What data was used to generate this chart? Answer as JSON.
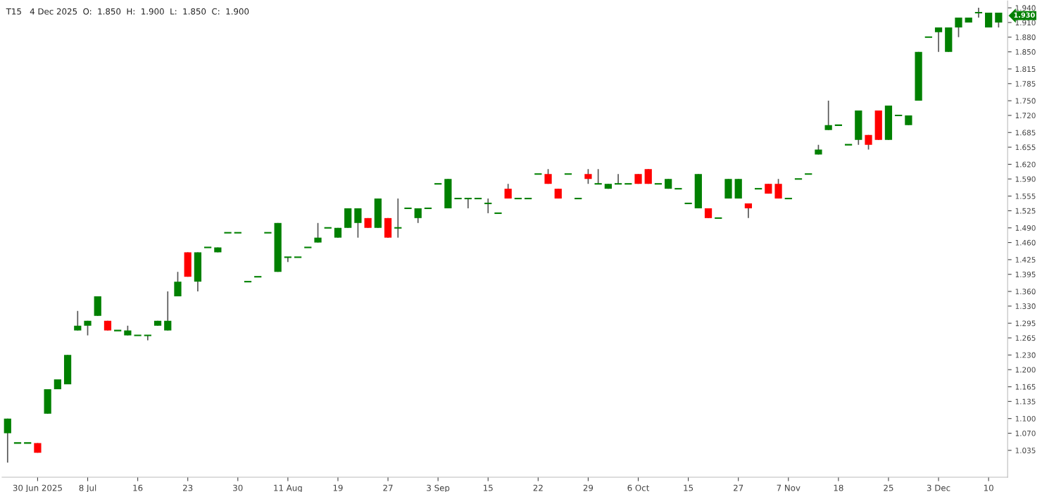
{
  "chart_data": {
    "type": "candlestick",
    "title": "T15   4 Dec 2025  O:  1.850  H:  1.900  L:  1.850  C:  1.900",
    "categories": [
      null,
      null,
      null,
      "30 Jun 2025",
      null,
      null,
      null,
      null,
      "8 Jul",
      null,
      null,
      null,
      null,
      "16",
      null,
      null,
      null,
      null,
      "23",
      null,
      null,
      null,
      null,
      "30",
      null,
      null,
      null,
      null,
      "11 Aug",
      null,
      null,
      null,
      null,
      "19",
      null,
      null,
      null,
      null,
      "27",
      null,
      null,
      null,
      null,
      "3 Sep",
      null,
      null,
      null,
      null,
      "15",
      null,
      null,
      null,
      null,
      "22",
      null,
      null,
      null,
      null,
      "29",
      null,
      null,
      null,
      null,
      "6 Oct",
      null,
      null,
      null,
      null,
      "15",
      null,
      null,
      null,
      null,
      "27",
      null,
      null,
      null,
      null,
      "7 Nov",
      null,
      null,
      null,
      null,
      "18",
      null,
      null,
      null,
      null,
      "25",
      null,
      null,
      null,
      null,
      "3 Dec",
      null,
      null,
      null,
      null,
      "10",
      null
    ],
    "ohlc": [
      [
        1.07,
        1.1,
        1.01,
        1.1
      ],
      [
        1.05,
        1.05,
        1.05,
        1.05
      ],
      [
        1.05,
        1.05,
        1.05,
        1.05
      ],
      [
        1.05,
        1.05,
        1.03,
        1.03
      ],
      [
        1.11,
        1.16,
        1.11,
        1.16
      ],
      [
        1.16,
        1.18,
        1.16,
        1.18
      ],
      [
        1.17,
        1.23,
        1.17,
        1.23
      ],
      [
        1.28,
        1.32,
        1.28,
        1.29
      ],
      [
        1.29,
        1.3,
        1.27,
        1.3
      ],
      [
        1.31,
        1.35,
        1.31,
        1.35
      ],
      [
        1.3,
        1.3,
        1.28,
        1.28
      ],
      [
        1.28,
        1.28,
        1.28,
        1.28
      ],
      [
        1.27,
        1.29,
        1.27,
        1.28
      ],
      [
        1.27,
        1.27,
        1.27,
        1.27
      ],
      [
        1.27,
        1.27,
        1.26,
        1.27
      ],
      [
        1.29,
        1.3,
        1.29,
        1.3
      ],
      [
        1.28,
        1.36,
        1.28,
        1.3
      ],
      [
        1.35,
        1.4,
        1.35,
        1.38
      ],
      [
        1.44,
        1.44,
        1.39,
        1.39
      ],
      [
        1.38,
        1.44,
        1.36,
        1.44
      ],
      [
        1.45,
        1.45,
        1.45,
        1.45
      ],
      [
        1.44,
        1.45,
        1.44,
        1.45
      ],
      [
        1.48,
        1.48,
        1.48,
        1.48
      ],
      [
        1.48,
        1.48,
        1.48,
        1.48
      ],
      [
        1.38,
        1.38,
        1.38,
        1.38
      ],
      [
        1.39,
        1.39,
        1.39,
        1.39
      ],
      [
        1.48,
        1.48,
        1.48,
        1.48
      ],
      [
        1.4,
        1.5,
        1.4,
        1.5
      ],
      [
        1.43,
        1.43,
        1.42,
        1.43
      ],
      [
        1.43,
        1.43,
        1.43,
        1.43
      ],
      [
        1.45,
        1.45,
        1.45,
        1.45
      ],
      [
        1.46,
        1.5,
        1.46,
        1.47
      ],
      [
        1.49,
        1.49,
        1.49,
        1.49
      ],
      [
        1.47,
        1.49,
        1.47,
        1.49
      ],
      [
        1.49,
        1.53,
        1.49,
        1.53
      ],
      [
        1.5,
        1.53,
        1.47,
        1.53
      ],
      [
        1.51,
        1.51,
        1.49,
        1.49
      ],
      [
        1.49,
        1.55,
        1.49,
        1.55
      ],
      [
        1.51,
        1.51,
        1.47,
        1.47
      ],
      [
        1.49,
        1.55,
        1.47,
        1.49
      ],
      [
        1.53,
        1.53,
        1.53,
        1.53
      ],
      [
        1.51,
        1.53,
        1.5,
        1.53
      ],
      [
        1.53,
        1.53,
        1.53,
        1.53
      ],
      [
        1.58,
        1.58,
        1.58,
        1.58
      ],
      [
        1.53,
        1.59,
        1.53,
        1.59
      ],
      [
        1.55,
        1.55,
        1.55,
        1.55
      ],
      [
        1.55,
        1.55,
        1.53,
        1.55
      ],
      [
        1.55,
        1.55,
        1.55,
        1.55
      ],
      [
        1.54,
        1.55,
        1.52,
        1.54
      ],
      [
        1.52,
        1.52,
        1.52,
        1.52
      ],
      [
        1.57,
        1.58,
        1.55,
        1.55
      ],
      [
        1.55,
        1.55,
        1.55,
        1.55
      ],
      [
        1.55,
        1.55,
        1.55,
        1.55
      ],
      [
        1.6,
        1.6,
        1.6,
        1.6
      ],
      [
        1.6,
        1.61,
        1.58,
        1.58
      ],
      [
        1.57,
        1.57,
        1.55,
        1.55
      ],
      [
        1.6,
        1.6,
        1.6,
        1.6
      ],
      [
        1.55,
        1.55,
        1.55,
        1.55
      ],
      [
        1.6,
        1.61,
        1.58,
        1.59
      ],
      [
        1.58,
        1.61,
        1.58,
        1.58
      ],
      [
        1.57,
        1.58,
        1.57,
        1.58
      ],
      [
        1.58,
        1.6,
        1.58,
        1.58
      ],
      [
        1.58,
        1.58,
        1.58,
        1.58
      ],
      [
        1.6,
        1.6,
        1.58,
        1.58
      ],
      [
        1.61,
        1.61,
        1.58,
        1.58
      ],
      [
        1.58,
        1.58,
        1.58,
        1.58
      ],
      [
        1.57,
        1.59,
        1.57,
        1.59
      ],
      [
        1.57,
        1.57,
        1.57,
        1.57
      ],
      [
        1.54,
        1.54,
        1.54,
        1.54
      ],
      [
        1.53,
        1.6,
        1.53,
        1.6
      ],
      [
        1.53,
        1.53,
        1.51,
        1.51
      ],
      [
        1.51,
        1.51,
        1.51,
        1.51
      ],
      [
        1.55,
        1.59,
        1.55,
        1.59
      ],
      [
        1.55,
        1.59,
        1.55,
        1.59
      ],
      [
        1.54,
        1.54,
        1.51,
        1.53
      ],
      [
        1.57,
        1.57,
        1.57,
        1.57
      ],
      [
        1.58,
        1.58,
        1.56,
        1.56
      ],
      [
        1.58,
        1.59,
        1.55,
        1.55
      ],
      [
        1.55,
        1.55,
        1.55,
        1.55
      ],
      [
        1.59,
        1.59,
        1.59,
        1.59
      ],
      [
        1.6,
        1.6,
        1.6,
        1.6
      ],
      [
        1.64,
        1.66,
        1.64,
        1.65
      ],
      [
        1.69,
        1.75,
        1.69,
        1.7
      ],
      [
        1.7,
        1.7,
        1.7,
        1.7
      ],
      [
        1.66,
        1.66,
        1.66,
        1.66
      ],
      [
        1.67,
        1.73,
        1.66,
        1.73
      ],
      [
        1.68,
        1.68,
        1.65,
        1.66
      ],
      [
        1.73,
        1.73,
        1.67,
        1.67
      ],
      [
        1.67,
        1.74,
        1.67,
        1.74
      ],
      [
        1.72,
        1.72,
        1.72,
        1.72
      ],
      [
        1.7,
        1.72,
        1.7,
        1.72
      ],
      [
        1.75,
        1.85,
        1.75,
        1.85
      ],
      [
        1.88,
        1.88,
        1.88,
        1.88
      ],
      [
        1.89,
        1.9,
        1.85,
        1.9
      ],
      [
        1.85,
        1.9,
        1.85,
        1.9
      ],
      [
        1.9,
        1.92,
        1.88,
        1.92
      ],
      [
        1.91,
        1.92,
        1.91,
        1.92
      ],
      [
        1.93,
        1.94,
        1.92,
        1.93
      ],
      [
        1.9,
        1.93,
        1.9,
        1.93
      ],
      [
        1.91,
        1.93,
        1.9,
        1.93
      ]
    ],
    "colors": [
      "#008000",
      "#008000",
      "#008000",
      "#ff0000",
      "#008000",
      "#008000",
      "#008000",
      "#008000",
      "#008000",
      "#008000",
      "#ff0000",
      "#008000",
      "#008000",
      "#008000",
      "#008000",
      "#008000",
      "#008000",
      "#008000",
      "#ff0000",
      "#008000",
      "#008000",
      "#008000",
      "#008000",
      "#008000",
      "#008000",
      "#008000",
      "#008000",
      "#008000",
      "#008000",
      "#008000",
      "#008000",
      "#008000",
      "#008000",
      "#008000",
      "#008000",
      "#008000",
      "#ff0000",
      "#008000",
      "#ff0000",
      "#008000",
      "#008000",
      "#008000",
      "#008000",
      "#008000",
      "#008000",
      "#008000",
      "#008000",
      "#008000",
      "#008000",
      "#008000",
      "#ff0000",
      "#008000",
      "#008000",
      "#008000",
      "#ff0000",
      "#ff0000",
      "#008000",
      "#008000",
      "#ff0000",
      "#008000",
      "#008000",
      "#008000",
      "#008000",
      "#ff0000",
      "#ff0000",
      "#008000",
      "#008000",
      "#008000",
      "#008000",
      "#008000",
      "#ff0000",
      "#008000",
      "#008000",
      "#008000",
      "#ff0000",
      "#008000",
      "#ff0000",
      "#ff0000",
      "#008000",
      "#008000",
      "#008000",
      "#008000",
      "#008000",
      "#008000",
      "#008000",
      "#008000",
      "#ff0000",
      "#ff0000",
      "#008000",
      "#008000",
      "#008000",
      "#008000",
      "#008000",
      "#008000",
      "#008000",
      "#008000",
      "#008000",
      "#008000",
      "#008000",
      "#008000"
    ],
    "ylim": [
      0.98,
      1.954
    ],
    "yticks": [
      1.035,
      {
        "value": 1.07,
        "label": "1.070"
      },
      {
        "value": 1.1,
        "label": "1.100"
      },
      1.135,
      1.165,
      {
        "value": 1.2,
        "label": "1.200"
      },
      {
        "value": 1.23,
        "label": "1.230"
      },
      1.265,
      1.295,
      {
        "value": 1.33,
        "label": "1.330"
      },
      {
        "value": 1.36,
        "label": "1.360"
      },
      1.395,
      1.425,
      {
        "value": 1.46,
        "label": "1.460"
      },
      {
        "value": 1.49,
        "label": "1.490"
      },
      1.525,
      1.555,
      {
        "value": 1.59,
        "label": "1.590"
      },
      {
        "value": 1.62,
        "label": "1.620"
      },
      1.655,
      1.685,
      {
        "value": 1.72,
        "label": "1.720"
      },
      {
        "value": 1.75,
        "label": "1.750"
      },
      1.785,
      1.815,
      {
        "value": 1.85,
        "label": "1.850"
      },
      {
        "value": 1.88,
        "label": "1.880"
      },
      {
        "value": 1.91,
        "label": "1.910"
      },
      {
        "value": 1.94,
        "label": "1.940"
      }
    ],
    "annotations": [
      "1.930"
    ],
    "grid": false,
    "legend": false
  }
}
